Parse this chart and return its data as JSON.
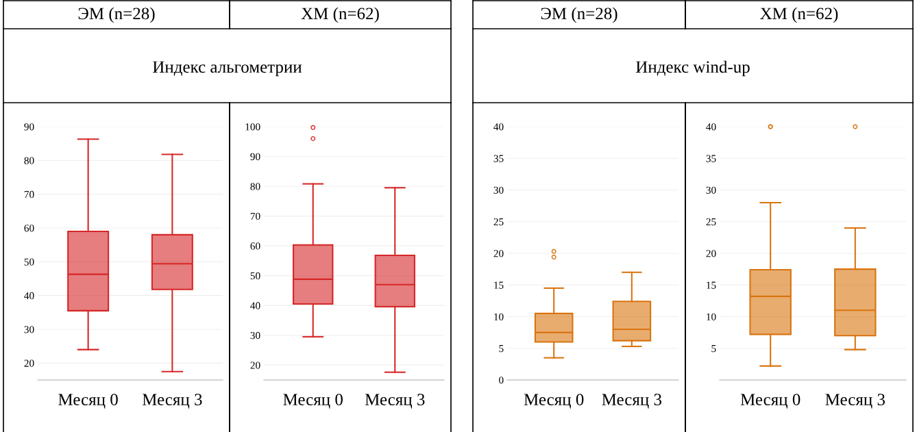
{
  "chart_data": [
    {
      "type": "box",
      "title": "ЭМ (n=28)",
      "subtitle": "Индекс альгометрии",
      "categories": [
        "Месяц 0",
        "Месяц 3"
      ],
      "color": "#d62728",
      "ylim": [
        15,
        90
      ],
      "yticks": [
        20,
        30,
        40,
        50,
        60,
        70,
        80,
        90
      ],
      "grid": "y",
      "boxes": [
        {
          "low": 24,
          "q1": 35.5,
          "median": 46.3,
          "q3": 59,
          "high": 86.3
        },
        {
          "low": 17.5,
          "q1": 41.8,
          "median": 49.4,
          "q3": 58,
          "high": 81.8
        }
      ]
    },
    {
      "type": "box",
      "title": "ХМ (n=62)",
      "categories": [
        "Месяц 0",
        "Месяц 3"
      ],
      "color": "#d62728",
      "ylim": [
        15,
        100
      ],
      "yticks": [
        20,
        30,
        40,
        50,
        60,
        70,
        80,
        90,
        100
      ],
      "grid": "y",
      "boxes": [
        {
          "low": 29.5,
          "q1": 40.5,
          "median": 48.8,
          "q3": 60.3,
          "high": 80.8,
          "outliers": [
            96,
            99.7
          ]
        },
        {
          "low": 17.6,
          "q1": 39.6,
          "median": 47,
          "q3": 56.8,
          "high": 79.5
        }
      ]
    },
    {
      "type": "box",
      "title": "ЭМ (n=28)",
      "subtitle": "Индекс wind-up",
      "categories": [
        "Месяц 0",
        "Месяц 3"
      ],
      "color": "#d9740f",
      "ylim": [
        0,
        40
      ],
      "yticks": [
        0,
        5,
        10,
        15,
        20,
        25,
        30,
        35,
        40
      ],
      "grid": "y",
      "boxes": [
        {
          "low": 3.5,
          "q1": 6,
          "median": 7.5,
          "q3": 10.5,
          "high": 14.5,
          "outliers": [
            19.4,
            20.3
          ]
        },
        {
          "low": 5.3,
          "q1": 6.2,
          "median": 8,
          "q3": 12.4,
          "high": 17
        }
      ]
    },
    {
      "type": "box",
      "title": "ХМ (n=62)",
      "categories": [
        "Месяц 0",
        "Месяц 3"
      ],
      "color": "#d9740f",
      "ylim": [
        0,
        40
      ],
      "yticks": [
        5,
        10,
        15,
        20,
        25,
        30,
        35,
        40
      ],
      "grid": "y",
      "boxes": [
        {
          "low": 2.2,
          "q1": 7.2,
          "median": 13.2,
          "q3": 17.4,
          "high": 28,
          "outliers": [
            40,
            40
          ]
        },
        {
          "low": 4.8,
          "q1": 7,
          "median": 11,
          "q3": 17.5,
          "high": 24,
          "outliers": [
            40
          ]
        }
      ]
    }
  ]
}
